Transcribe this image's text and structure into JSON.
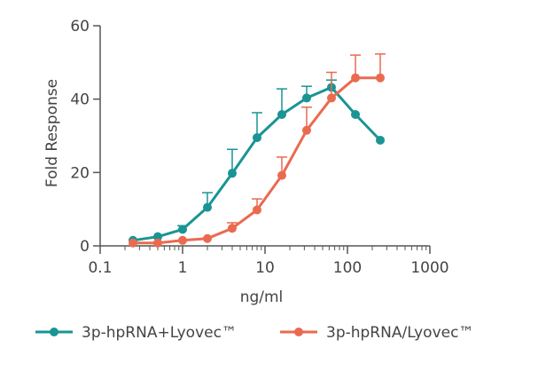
{
  "chart_data": {
    "type": "line",
    "xlabel": "ng/ml",
    "ylabel": "Fold Response",
    "x_scale": "log",
    "xlim": [
      0.1,
      1000
    ],
    "ylim": [
      0,
      60
    ],
    "x_ticks": [
      0.1,
      1,
      10,
      100,
      1000
    ],
    "x_tick_labels": [
      "0.1",
      "1",
      "10",
      "100",
      "1000"
    ],
    "y_ticks": [
      0,
      20,
      40,
      60
    ],
    "y_tick_labels": [
      "0",
      "20",
      "40",
      "60"
    ],
    "grid": false,
    "legend_position": "bottom",
    "series": [
      {
        "name": "3p-hpRNA+Lyovec™",
        "color": "#1a9494",
        "x": [
          0.25,
          0.5,
          1,
          2,
          4,
          8,
          16,
          32,
          64,
          125,
          250
        ],
        "y": [
          1.5,
          2.5,
          4.5,
          10.5,
          19.8,
          29.5,
          35.8,
          40.3,
          43.2,
          35.8,
          28.8
        ],
        "error_upper": [
          null,
          null,
          5.5,
          14.5,
          26.3,
          36.3,
          42.8,
          43.5,
          45.2,
          null,
          null
        ]
      },
      {
        "name": "3p-hpRNA/Lyovec™",
        "color": "#ea6a50",
        "x": [
          0.25,
          0.5,
          1,
          2,
          4,
          8,
          16,
          32,
          64,
          125,
          250
        ],
        "y": [
          0.8,
          0.8,
          1.5,
          2.0,
          4.8,
          9.8,
          19.2,
          31.5,
          40.3,
          45.8,
          45.8
        ],
        "error_upper": [
          null,
          null,
          null,
          null,
          6.3,
          12.8,
          24.2,
          37.8,
          47.3,
          52.0,
          52.3
        ]
      }
    ]
  }
}
